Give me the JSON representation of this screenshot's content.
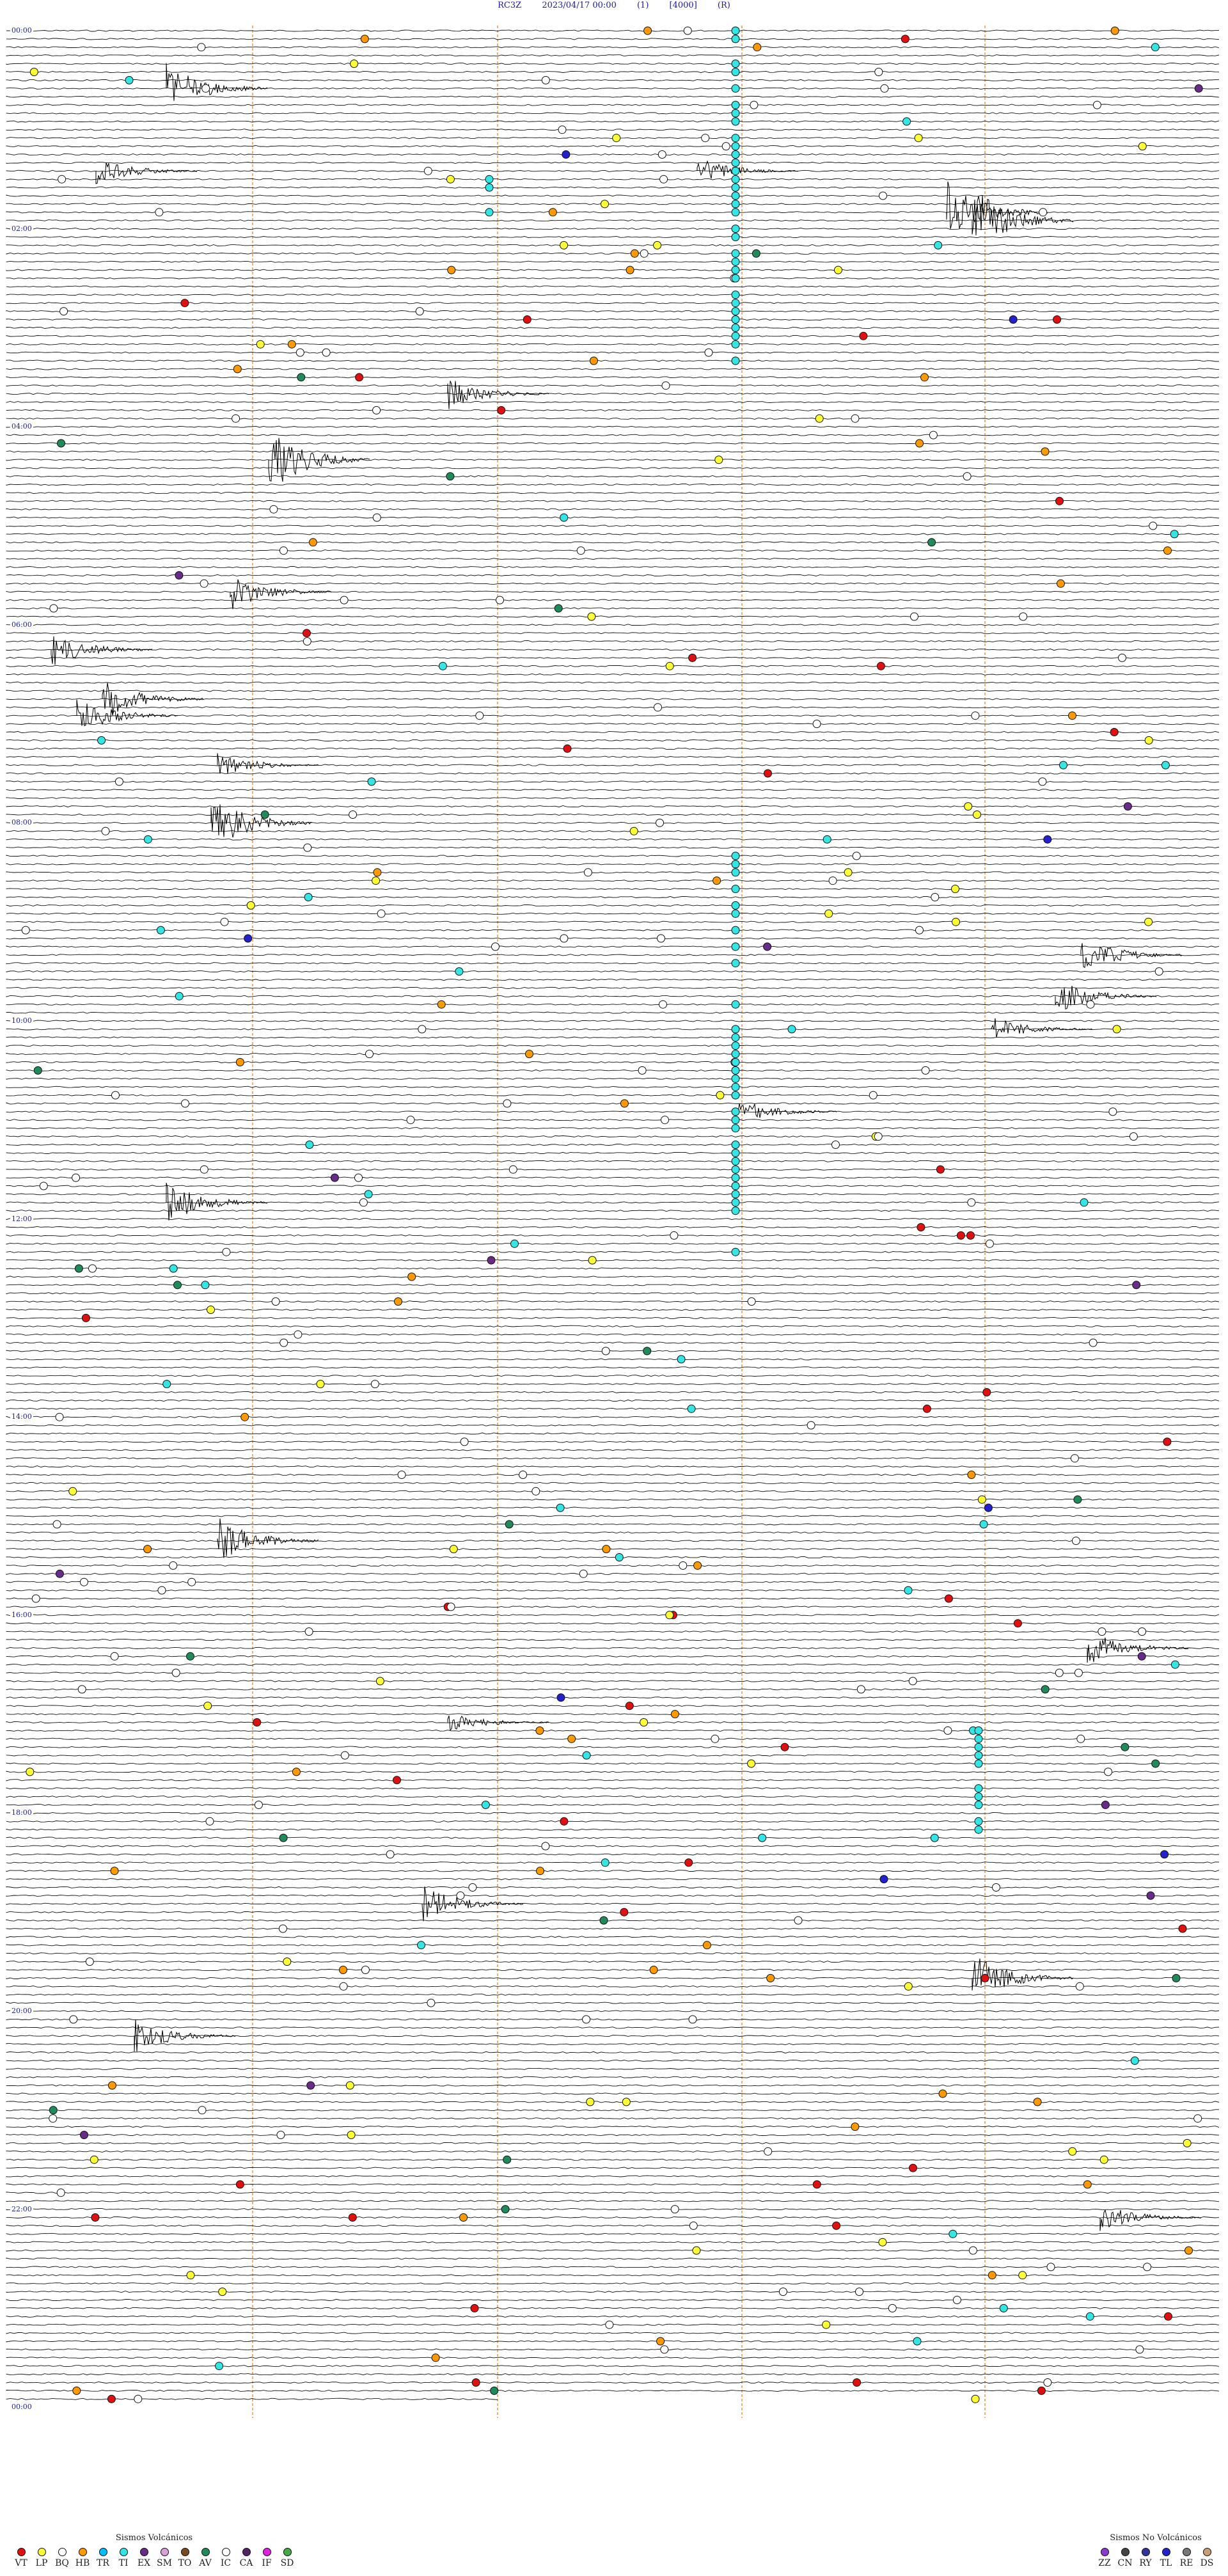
{
  "header": {
    "station": "RC3Z",
    "datetime": "2023/04/17 00:00",
    "channel": "(1)",
    "gain": "[4000]",
    "mode": "(R)"
  },
  "hour_labels": [
    "00:00",
    "02:00",
    "04:00",
    "06:00",
    "08:00",
    "10:00",
    "12:00",
    "14:00",
    "16:00",
    "18:00",
    "20:00",
    "22:00",
    "00:00"
  ],
  "legend_volcanic": {
    "title": "Sismos Volcánicos",
    "items": [
      {
        "code": "VT",
        "color": "#e01010"
      },
      {
        "code": "LP",
        "color": "#ffff33"
      },
      {
        "code": "BQ",
        "color": "#ffffff"
      },
      {
        "code": "HB",
        "color": "#ff9900"
      },
      {
        "code": "TR",
        "color": "#00bfff"
      },
      {
        "code": "TI",
        "color": "#33e6e6"
      },
      {
        "code": "EX",
        "color": "#6a2a8a"
      },
      {
        "code": "SM",
        "color": "#d9a0d9"
      },
      {
        "code": "TO",
        "color": "#7a4a20"
      },
      {
        "code": "AV",
        "color": "#1f8a5a"
      },
      {
        "code": "IC",
        "color": "#ffffff"
      },
      {
        "code": "CA",
        "color": "#552266"
      },
      {
        "code": "IF",
        "color": "#e020e0"
      },
      {
        "code": "SD",
        "color": "#44aa44"
      }
    ]
  },
  "legend_nonvolcanic": {
    "title": "Sismos No Volcánicos",
    "items": [
      {
        "code": "ZZ",
        "color": "#8a3acd"
      },
      {
        "code": "CN",
        "color": "#444444"
      },
      {
        "code": "RY",
        "color": "#333399"
      },
      {
        "code": "TL",
        "color": "#2222cc"
      },
      {
        "code": "RE",
        "color": "#777777"
      },
      {
        "code": "DS",
        "color": "#c8a070"
      }
    ]
  }
}
